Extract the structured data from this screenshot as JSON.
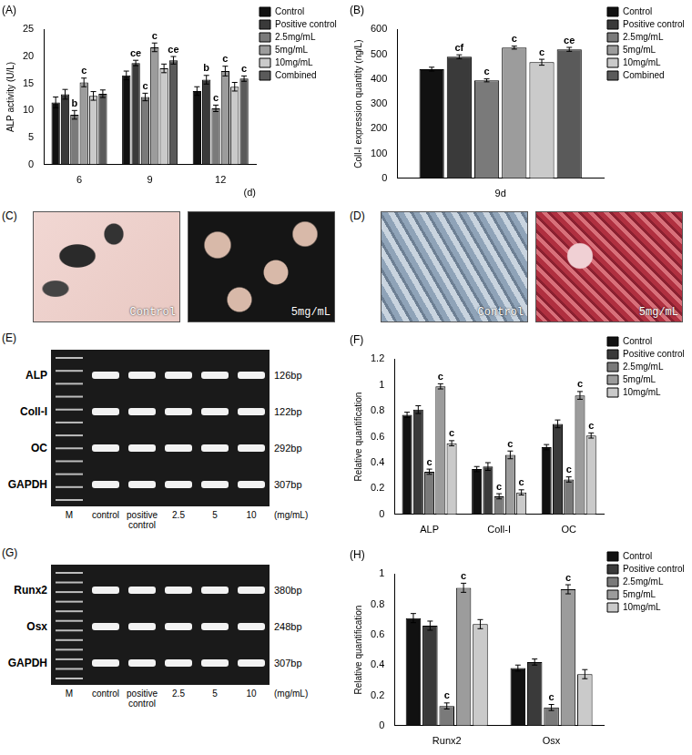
{
  "chart_data": [
    {
      "type": "bar",
      "title": "(A)",
      "ylabel": "ALP activity (U/L)",
      "xlabel": "(d)",
      "categories": [
        "6",
        "9",
        "12"
      ],
      "series": [
        {
          "name": "Control",
          "color": "#111111",
          "values": [
            11.5,
            16.5,
            13.6
          ],
          "errors": [
            1.0,
            0.8,
            0.8
          ]
        },
        {
          "name": "Positive control",
          "color": "#3a3a3a",
          "values": [
            13.0,
            18.8,
            15.7
          ],
          "errors": [
            0.9,
            0.5,
            0.8
          ],
          "annotations": [
            null,
            "ce",
            "b"
          ]
        },
        {
          "name": "2.5mg/mL",
          "color": "#7a7a7a",
          "values": [
            9.2,
            12.5,
            10.4
          ],
          "errors": [
            0.8,
            0.7,
            0.6
          ],
          "annotations": [
            "b",
            "c",
            "c"
          ]
        },
        {
          "name": "5mg/mL",
          "color": "#9c9c9c",
          "values": [
            15.2,
            21.7,
            17.3
          ],
          "errors": [
            0.8,
            0.8,
            0.9
          ],
          "annotations": [
            "c",
            "c",
            "c"
          ]
        },
        {
          "name": "10mg/mL",
          "color": "#cacaca",
          "values": [
            12.7,
            17.8,
            14.4
          ],
          "errors": [
            0.8,
            0.8,
            0.8
          ]
        },
        {
          "name": "Combined",
          "color": "#5a5a5a",
          "values": [
            13.1,
            19.3,
            15.9
          ],
          "errors": [
            0.7,
            0.7,
            0.5
          ],
          "annotations": [
            null,
            "ce",
            "c"
          ]
        }
      ],
      "ylim": [
        0,
        25
      ],
      "yticks": [
        0,
        5,
        10,
        15,
        20,
        25
      ],
      "grid": false,
      "legend": "right"
    },
    {
      "type": "bar",
      "title": "(B)",
      "ylabel": "Coll-I expression quantity (ng/L)",
      "categories": [
        "9d"
      ],
      "series": [
        {
          "name": "Control",
          "color": "#111111",
          "values": [
            440
          ],
          "errors": [
            8
          ]
        },
        {
          "name": "Positive control",
          "color": "#3a3a3a",
          "values": [
            490
          ],
          "errors": [
            8
          ],
          "annotations": [
            "cf"
          ]
        },
        {
          "name": "2.5mg/mL",
          "color": "#7a7a7a",
          "values": [
            395
          ],
          "errors": [
            6
          ],
          "annotations": [
            "c"
          ]
        },
        {
          "name": "5mg/mL",
          "color": "#9c9c9c",
          "values": [
            527
          ],
          "errors": [
            6
          ],
          "annotations": [
            "c"
          ]
        },
        {
          "name": "10mg/mL",
          "color": "#cacaca",
          "values": [
            468
          ],
          "errors": [
            12
          ],
          "annotations": [
            "c"
          ]
        },
        {
          "name": "Combined",
          "color": "#5a5a5a",
          "values": [
            520
          ],
          "errors": [
            8
          ],
          "annotations": [
            "ce"
          ]
        }
      ],
      "ylim": [
        0,
        600
      ],
      "yticks": [
        0,
        100,
        200,
        300,
        400,
        500,
        600
      ],
      "grid": false,
      "legend": "right"
    },
    {
      "type": "bar",
      "title": "(F)",
      "ylabel": "Relative quantification",
      "categories": [
        "ALP",
        "Coll-I",
        "OC"
      ],
      "series": [
        {
          "name": "Control",
          "color": "#111111",
          "values": [
            0.77,
            0.35,
            0.52
          ],
          "errors": [
            0.02,
            0.02,
            0.02
          ]
        },
        {
          "name": "Positive control",
          "color": "#3a3a3a",
          "values": [
            0.81,
            0.37,
            0.7
          ],
          "errors": [
            0.03,
            0.03,
            0.03
          ]
        },
        {
          "name": "2.5mg/mL",
          "color": "#7a7a7a",
          "values": [
            0.33,
            0.14,
            0.27
          ],
          "errors": [
            0.02,
            0.02,
            0.02
          ],
          "annotations": [
            "c",
            "c",
            "c"
          ]
        },
        {
          "name": "5mg/mL",
          "color": "#9c9c9c",
          "values": [
            0.99,
            0.46,
            0.92
          ],
          "errors": [
            0.02,
            0.03,
            0.03
          ],
          "annotations": [
            "c",
            "c",
            "c"
          ]
        },
        {
          "name": "10mg/mL",
          "color": "#cacaca",
          "values": [
            0.55,
            0.17,
            0.61
          ],
          "errors": [
            0.02,
            0.02,
            0.02
          ],
          "annotations": [
            "c",
            "c",
            "c"
          ]
        }
      ],
      "ylim": [
        0,
        1.2
      ],
      "yticks": [
        0,
        0.2,
        0.4,
        0.6,
        0.8,
        1,
        1.2
      ],
      "grid": false,
      "legend": "right"
    },
    {
      "type": "bar",
      "title": "(H)",
      "ylabel": "Relative quantification",
      "categories": [
        "Runx2",
        "Osx"
      ],
      "series": [
        {
          "name": "Control",
          "color": "#111111",
          "values": [
            0.71,
            0.38
          ],
          "errors": [
            0.03,
            0.02
          ]
        },
        {
          "name": "Positive control",
          "color": "#3a3a3a",
          "values": [
            0.66,
            0.42
          ],
          "errors": [
            0.03,
            0.02
          ]
        },
        {
          "name": "2.5mg/mL",
          "color": "#7a7a7a",
          "values": [
            0.13,
            0.12
          ],
          "errors": [
            0.02,
            0.02
          ],
          "annotations": [
            "c",
            "c"
          ]
        },
        {
          "name": "5mg/mL",
          "color": "#9c9c9c",
          "values": [
            0.91,
            0.9
          ],
          "errors": [
            0.03,
            0.03
          ],
          "annotations": [
            "c",
            "c"
          ]
        },
        {
          "name": "10mg/mL",
          "color": "#cacaca",
          "values": [
            0.67,
            0.34
          ],
          "errors": [
            0.03,
            0.03
          ]
        }
      ],
      "ylim": [
        0,
        1
      ],
      "yticks": [
        0,
        0.2,
        0.4,
        0.6,
        0.8,
        1
      ],
      "grid": false,
      "legend": "right"
    }
  ],
  "images": [
    {
      "title": "(C)",
      "panels": [
        "Control",
        "5mg/mL"
      ]
    },
    {
      "title": "(D)",
      "panels": [
        "Control",
        "5mg/mL"
      ]
    }
  ],
  "gels": [
    {
      "title": "(E)",
      "lanes": [
        "M",
        "control",
        "positive control",
        "2.5",
        "5",
        "10"
      ],
      "lane_unit": "(mg/mL)",
      "rows": [
        {
          "name": "ALP",
          "size": "126bp"
        },
        {
          "name": "Coll-I",
          "size": "122bp"
        },
        {
          "name": "OC",
          "size": "292bp"
        },
        {
          "name": "GAPDH",
          "size": "307bp"
        }
      ]
    },
    {
      "title": "(G)",
      "lanes": [
        "M",
        "control",
        "positive control",
        "2.5",
        "5",
        "10"
      ],
      "lane_unit": "(mg/mL)",
      "rows": [
        {
          "name": "Runx2",
          "size": "380bp"
        },
        {
          "name": "Osx",
          "size": "248bp"
        },
        {
          "name": "GAPDH",
          "size": "307bp"
        }
      ]
    }
  ]
}
